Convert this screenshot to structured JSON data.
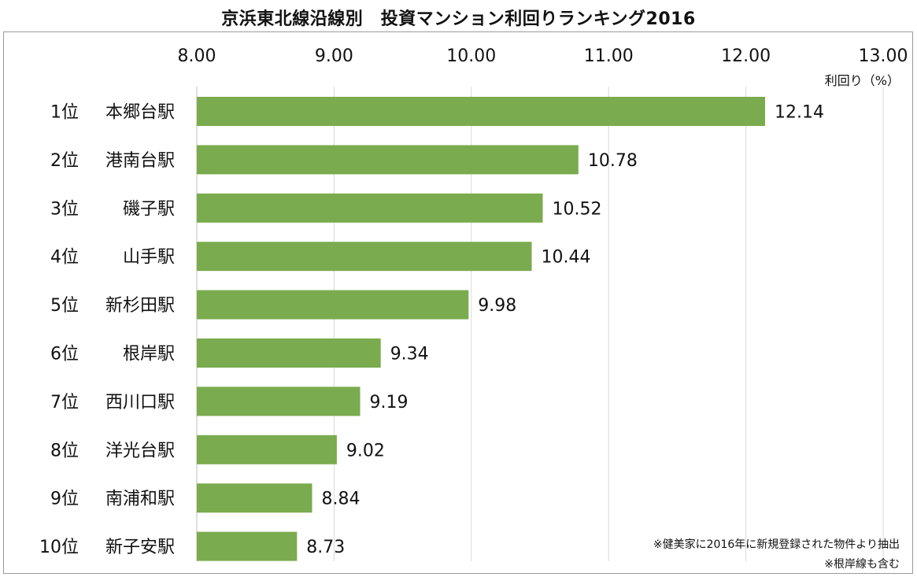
{
  "chart_data": {
    "type": "bar",
    "orientation": "horizontal",
    "title": "京浜東北線沿線別　投資マンション利回りランキング2016",
    "unit_label": "利回り（%）",
    "x_ticks": [
      "8.00",
      "9.00",
      "10.00",
      "11.00",
      "12.00",
      "13.00"
    ],
    "xlim": [
      8,
      13
    ],
    "grid": true,
    "bar_color": "#7aab4e",
    "categories": [
      {
        "rank": "1位",
        "station": "本郷台駅"
      },
      {
        "rank": "2位",
        "station": "港南台駅"
      },
      {
        "rank": "3位",
        "station": "磯子駅"
      },
      {
        "rank": "4位",
        "station": "山手駅"
      },
      {
        "rank": "5位",
        "station": "新杉田駅"
      },
      {
        "rank": "6位",
        "station": "根岸駅"
      },
      {
        "rank": "7位",
        "station": "西川口駅"
      },
      {
        "rank": "8位",
        "station": "洋光台駅"
      },
      {
        "rank": "9位",
        "station": "南浦和駅"
      },
      {
        "rank": "10位",
        "station": "新子安駅"
      }
    ],
    "values": [
      12.14,
      10.78,
      10.52,
      10.44,
      9.98,
      9.34,
      9.19,
      9.02,
      8.84,
      8.73
    ],
    "value_labels": [
      "12.14",
      "10.78",
      "10.52",
      "10.44",
      "9.98",
      "9.34",
      "9.19",
      "9.02",
      "8.84",
      "8.73"
    ]
  },
  "notes": {
    "source": "※健美家に2016年に新規登録された物件より抽出",
    "scope": "※根岸線も含む"
  }
}
